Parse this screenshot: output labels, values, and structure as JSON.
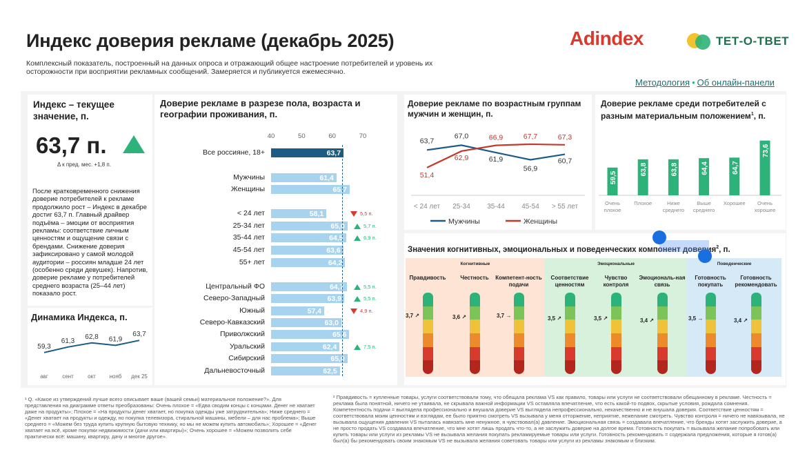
{
  "header": {
    "title": "Индекс доверия рекламе (декабрь 2025)",
    "subtitle": "Комплексный показатель, построенный на данных опроса и отражающий общее настроение потребителей и уровень их осторожности при восприятии рекламных сообщений. Замеряется и публикуется ежемесячно.",
    "brand_adindex": "Adindex",
    "brand_tet": "ТЕТ-О-ТВЕТ",
    "link_methodology": "Методология",
    "link_separator": "•",
    "link_panel": "Об онлайн-панели"
  },
  "kpi": {
    "title": "Индекс – текущее значение, п.",
    "value": "63,7 п.",
    "delta": "Δ к пред. мес.  +1,8 п.",
    "description": "После кратковременного снижения доверие потребителей к рекламе продолжило рост – Индекс в декабре достиг 63,7 п. Главный драйвер подъёма – эмоции от восприятия рекламы: соответствие личным ценностям и ощущение связи с брендами. Снижение доверия зафиксировано у самой молодой аудитории – россиян младше 24 лет (особенно среди девушек). Напротив, доверие рекламе у потребителей среднего возраста (25–44 лет) показало рост.",
    "trend_title": "Динамика Индекса, п.",
    "trend_colors": {
      "line": "#1b5b84"
    }
  },
  "colors": {
    "accent_green": "#2db37a",
    "accent_red": "#d83a2d",
    "bar_light": "#a7d3ee",
    "bar_dark": "#1b5b84",
    "men": "#1b5b84",
    "women": "#c0392b"
  },
  "chart_data": [
    {
      "type": "line",
      "title": "Динамика Индекса, п.",
      "categories": [
        "авг",
        "сент",
        "окт",
        "нояб",
        "дек 25"
      ],
      "series": [
        {
          "name": "",
          "values": [
            59.3,
            61.3,
            62.8,
            61.9,
            63.7
          ],
          "labels": [
            "59,3",
            "61,3",
            "62,8",
            "61,9",
            "63,7"
          ]
        }
      ],
      "ylim": [
        56,
        66
      ]
    },
    {
      "type": "bar",
      "title": "Доверие рекламе в разрезе пола, возраста и географии проживания, п.",
      "axis_ticks": [
        "40",
        "50",
        "60",
        "70"
      ],
      "xlim": [
        40,
        70
      ],
      "rows": [
        {
          "label": "Все россияне, 18+",
          "value": 63.7,
          "text": "63,7",
          "highlight": true,
          "change": "",
          "dir": ""
        },
        {
          "label": "Мужчины",
          "value": 61.4,
          "text": "61,4",
          "change": "",
          "dir": ""
        },
        {
          "label": "Женщины",
          "value": 65.7,
          "text": "65,7",
          "change": "",
          "dir": ""
        },
        {
          "label": "< 24 лет",
          "value": 58.1,
          "text": "58,1",
          "change": "5,5 п.",
          "dir": "down"
        },
        {
          "label": "25-34 лет",
          "value": 65.0,
          "text": "65,0",
          "change": "5,7 п.",
          "dir": "up"
        },
        {
          "label": "35-44 лет",
          "value": 64.5,
          "text": "64,5",
          "change": "6,9 п.",
          "dir": "up"
        },
        {
          "label": "45-54 лет",
          "value": 63.6,
          "text": "63,6",
          "change": "",
          "dir": ""
        },
        {
          "label": "55+ лет",
          "value": 64.2,
          "text": "64,2",
          "change": "",
          "dir": ""
        },
        {
          "label": "Центральный ФО",
          "value": 64.7,
          "text": "64,7",
          "change": "5,5 п.",
          "dir": "up"
        },
        {
          "label": "Северо-Западный",
          "value": 63.9,
          "text": "63,9",
          "change": "5,5 п.",
          "dir": "up"
        },
        {
          "label": "Южный",
          "value": 57.4,
          "text": "57,4",
          "change": "4,9 п.",
          "dir": "down"
        },
        {
          "label": "Северо-Кавказский",
          "value": 63.0,
          "text": "63,0",
          "change": "",
          "dir": ""
        },
        {
          "label": "Приволжский",
          "value": 65.6,
          "text": "65,6",
          "change": "",
          "dir": ""
        },
        {
          "label": "Уральский",
          "value": 62.4,
          "text": "62,4",
          "change": "7,5 п.",
          "dir": "up"
        },
        {
          "label": "Сибирский",
          "value": 65.0,
          "text": "65,0",
          "change": "",
          "dir": ""
        },
        {
          "label": "Дальневосточный",
          "value": 62.5,
          "text": "62,5",
          "change": "",
          "dir": ""
        }
      ]
    },
    {
      "type": "line",
      "title": "Доверие рекламе по возрастным группам мужчин и женщин, п.",
      "categories": [
        "< 24 лет",
        "25-34",
        "35-44",
        "45-54",
        "> 55 лет"
      ],
      "series": [
        {
          "name": "Мужчины",
          "values": [
            63.7,
            67.0,
            61.9,
            56.9,
            60.7
          ],
          "labels": [
            "63,7",
            "67,0",
            "61,9",
            "56,9",
            "60,7"
          ]
        },
        {
          "name": "Женщины",
          "values": [
            51.4,
            62.9,
            66.9,
            67.7,
            67.3
          ],
          "labels": [
            "51,4",
            "62,9",
            "66,9",
            "67,7",
            "67,3"
          ]
        }
      ],
      "ylim": [
        48,
        72
      ],
      "legend": "bottom"
    },
    {
      "type": "bar",
      "title": "Доверие рекламе среди потребителей с разным материальным положением",
      "title_suffix": "1",
      "title_unit": ", п.",
      "categories": [
        "Очень плохое",
        "Плохое",
        "Ниже среднего",
        "Выше среднего",
        "Хорошее",
        "Очень хорошее"
      ],
      "values": [
        59.5,
        63.8,
        63.8,
        64.4,
        64.7,
        73.6
      ],
      "labels": [
        "59,5",
        "63,8",
        "63,8",
        "64,4",
        "64,7",
        "73,6"
      ],
      "ylim": [
        45,
        76
      ]
    }
  ],
  "cognitive": {
    "title": "Значения когнитивных, эмоциональных и поведенческих компонент доверия",
    "title_sup": "2",
    "title_unit": ", п.",
    "groups": [
      {
        "name": "Когнитивные",
        "color": "#fde4d4"
      },
      {
        "name": "Эмоциональные",
        "color": "#d8f1dc"
      },
      {
        "name": "Поведенческие",
        "color": "#d6e9f7"
      }
    ],
    "columns": [
      {
        "label": "Правдивость",
        "value": "3,7 ↗",
        "level": 0.74
      },
      {
        "label": "Честность",
        "value": "3,6 ↗",
        "level": 0.72
      },
      {
        "label": "Компетент-ность подачи",
        "value": "3,7 →",
        "level": 0.74
      },
      {
        "label": "Соответствие ценностям",
        "value": "3,5 ↗",
        "level": 0.7
      },
      {
        "label": "Чувство контроля",
        "value": "3,5 ↗",
        "level": 0.7
      },
      {
        "label": "Эмоциональ-ная связь",
        "value": "3,4 ↗",
        "level": 0.68
      },
      {
        "label": "Готовность покупать",
        "value": "3,5 →",
        "level": 0.7
      },
      {
        "label": "Готовность рекомендовать",
        "value": "3,4 ↗",
        "level": 0.68
      }
    ],
    "thermo_colors": [
      "#2db37a",
      "#7cc35a",
      "#f0c23a",
      "#ec8a2c",
      "#d83a2d",
      "#b3261e"
    ]
  },
  "footnotes": {
    "note1": "¹ Q. «Какое из утверждений лучше всего описывает ваше (вашей семьи) материальное положение?». Для представления на диаграмме ответы преобразованы: Очень плохое = «Едва сводим концы с концами. Денег не хватает даже на продукты»; Плохое = «На продукты денег хватает, но покупка одежды уже затруднительна»; Ниже среднего = «Денег хватает на продукты и одежду, но покупка телевизора, стиральной машины, мебели – для нас проблема»; Выше среднего = «Можем без труда купить крупную бытовую технику, но мы не можем купить автомобиль»; Хорошее = «Денег хватает на всё, кроме покупки недвижимости (дачи или квартиры)»; Очень хорошее = «Можем позволить себе практически всё: машину, квартиру, дачу и многое другое».",
    "note2": "² Правдивость = купленные товары, услуги соответствовали тому, что обещала реклама VS как правило, товары или услуги не соответствовали обещанному в рекламе. Честность = реклама была понятной, ничего не утаивала, не скрывала важной информации VS оставляла впечатление, что есть какой-то подвох, скрытые условия, рождала сомнения. Компетентность подачи = выглядела профессионально и внушала доверие VS выглядела непрофессионально, некачественно и не внушала доверия. Соответствие ценностям = соответствовала моим ценностям и взглядам, ее было приятно смотреть VS вызывала у меня отторжение, неприятие, нежелание смотреть. Чувство контроля = ничего не навязывала, не вызывала ощущения давления VS пыталась навязать мне ненужное, я чувствовал(а) давление. Эмоциональная связь = создавала впечатление, что бренды хотят заслужить доверие, а не просто продать VS создавала впечатление, что мне хотят лишь продать что-то, а не заслужить доверие на долгое время. Готовность покупать = вызывала желание попробовать или купить товары или услуги из рекламы VS не вызывала желания покупать рекламируемые товары или услуги. Готовность рекомендовать = содержала предложения, которые я готов(а) был(а) бы рекомендовать своим знакомым VS не вызывала желания советовать товары или услуги из рекламы знакомым и близким."
  }
}
